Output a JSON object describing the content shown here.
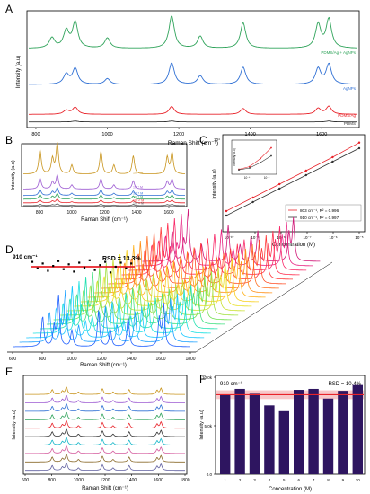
{
  "chart_data": [
    {
      "panel": "A",
      "type": "line",
      "xlabel": "Raman Shift (cm⁻¹)",
      "ylabel": "Intensity (a.u)",
      "xlim": [
        780,
        1700
      ],
      "x_ticks": [
        "800",
        "1000",
        "1200",
        "1400",
        "1600"
      ],
      "legend": "right",
      "series": [
        {
          "name": "PDMS/Ag + AgNPs",
          "color": "#2fa35a",
          "peaks": [
            [
              845,
              0.3
            ],
            [
              885,
              0.5
            ],
            [
              910,
              0.75
            ],
            [
              1000,
              0.3
            ],
            [
              1180,
              0.95
            ],
            [
              1260,
              0.35
            ],
            [
              1380,
              0.75
            ],
            [
              1590,
              0.7
            ],
            [
              1620,
              0.85
            ]
          ]
        },
        {
          "name": "AgNPs",
          "color": "#2e6fd4",
          "peaks": [
            [
              885,
              0.35
            ],
            [
              910,
              0.55
            ],
            [
              1000,
              0.2
            ],
            [
              1180,
              0.75
            ],
            [
              1260,
              0.3
            ],
            [
              1380,
              0.6
            ],
            [
              1590,
              0.55
            ],
            [
              1620,
              0.7
            ]
          ]
        },
        {
          "name": "PDMS/Ag",
          "color": "#e8232a",
          "peaks": [
            [
              885,
              0.2
            ],
            [
              910,
              0.35
            ],
            [
              1180,
              0.4
            ],
            [
              1380,
              0.3
            ],
            [
              1590,
              0.3
            ],
            [
              1620,
              0.4
            ]
          ]
        },
        {
          "name": "PDMS",
          "color": "#333333",
          "peaks": [
            [
              910,
              0.1
            ],
            [
              1180,
              0.1
            ],
            [
              1620,
              0.1
            ]
          ]
        }
      ]
    },
    {
      "panel": "B",
      "type": "line",
      "xlabel": "Raman Shift (cm⁻¹)",
      "ylabel": "Intensity (a.u)",
      "xlim": [
        700,
        1700
      ],
      "x_ticks": [
        "800",
        "1000",
        "1200",
        "1400",
        "1600"
      ],
      "series": [
        {
          "name": "10⁻⁶ M",
          "color": "#c8941c",
          "scale": 1.0
        },
        {
          "name": "10⁻⁷ M",
          "color": "#9d5bd2",
          "scale": 0.45
        },
        {
          "name": "10⁻⁸ M",
          "color": "#2e6fd4",
          "scale": 0.25
        },
        {
          "name": "10⁻⁹ M",
          "color": "#2fa35a",
          "scale": 0.18
        },
        {
          "name": "10⁻¹⁰ M",
          "color": "#e8232a",
          "scale": 0.12
        },
        {
          "name": "10⁻¹¹ M",
          "color": "#555555",
          "scale": 0.06
        }
      ],
      "peaks": [
        [
          803,
          0.8
        ],
        [
          880,
          0.5
        ],
        [
          910,
          1.0
        ],
        [
          1000,
          0.3
        ],
        [
          1180,
          0.75
        ],
        [
          1260,
          0.3
        ],
        [
          1380,
          0.6
        ],
        [
          1590,
          0.55
        ],
        [
          1620,
          0.7
        ]
      ]
    },
    {
      "panel": "C",
      "type": "scatter",
      "xlabel": "Concentration (M)",
      "ylabel": "Intensity (a.u)",
      "x_log": true,
      "y_log": true,
      "x_ticks": [
        "10⁻¹⁰",
        "10⁻⁹",
        "10⁻⁸",
        "10⁻⁷",
        "10⁻⁶",
        "10⁻⁵"
      ],
      "y_ticks": [
        "10⁴"
      ],
      "x": [
        -11,
        -10,
        -9,
        -8,
        -7,
        -6
      ],
      "series": [
        {
          "name": "803 cm⁻¹, R² = 0.996",
          "color": "#e8232a",
          "log_values": [
            0.8,
            1.4,
            2.0,
            2.6,
            3.2,
            3.85
          ]
        },
        {
          "name": "910 cm⁻¹, R² = 0.997",
          "color": "#333333",
          "log_values": [
            0.6,
            1.2,
            1.8,
            2.4,
            3.0,
            3.6
          ]
        }
      ],
      "legend": "bottom-right",
      "inset": {
        "ylabel": "Intensity (a.u)",
        "x_ticks": [
          "10⁻⁶",
          "10⁻⁵"
        ],
        "series": [
          {
            "color": "#e8232a",
            "values": [
              0.05,
              0.15,
              0.45,
              0.85
            ]
          },
          {
            "color": "#333333",
            "values": [
              0.03,
              0.1,
              0.3,
              0.55
            ]
          }
        ]
      }
    },
    {
      "panel": "D",
      "type": "line",
      "xlabel": "Raman Shift (cm⁻¹)",
      "x_ticks": [
        "600",
        "800",
        "1000",
        "1200",
        "1400",
        "1600",
        "1800"
      ],
      "spectra_count": 20,
      "colors": [
        "#1e5fff",
        "#1aa0ff",
        "#18c8ff",
        "#18e0e0",
        "#20e0b0",
        "#40e080",
        "#70e050",
        "#a0e040",
        "#c8e030",
        "#e8e028",
        "#f8d020",
        "#ffb018",
        "#ff9018",
        "#ff7020",
        "#ff5028",
        "#ff3838",
        "#ff3050",
        "#f82868",
        "#e82080",
        "#d01878"
      ],
      "peaks": [
        [
          803,
          0.55
        ],
        [
          880,
          0.35
        ],
        [
          910,
          0.9
        ],
        [
          1000,
          0.3
        ],
        [
          1180,
          0.65
        ],
        [
          1260,
          0.3
        ],
        [
          1380,
          0.55
        ],
        [
          1590,
          0.5
        ],
        [
          1620,
          0.75
        ]
      ],
      "inset": {
        "label": "910 cm⁻¹",
        "rsd": "RSD = 13.3%",
        "points": [
          0.6,
          -0.2,
          0.4,
          -0.5,
          0.1,
          0.7,
          -0.3,
          0.3,
          -0.6,
          0.5,
          -0.1,
          0.8,
          -0.4,
          0.2,
          0.6,
          -0.7,
          0.0,
          0.5,
          -0.2,
          0.4
        ],
        "mean_line_color": "#e8232a"
      }
    },
    {
      "panel": "E",
      "type": "line",
      "xlabel": "Raman Shift (cm⁻¹)",
      "ylabel": "Intensity (a.u)",
      "xlim": [
        600,
        1800
      ],
      "x_ticks": [
        "600",
        "800",
        "1000",
        "1200",
        "1400",
        "1600",
        "1800"
      ],
      "spectra_count": 10,
      "colors": [
        "#c8941c",
        "#9d5bd2",
        "#2e6fd4",
        "#2fa35a",
        "#e8232a",
        "#333333",
        "#12b5c8",
        "#d45a9d",
        "#8a6a2a",
        "#6060a0"
      ],
      "peaks": [
        [
          803,
          0.6
        ],
        [
          880,
          0.4
        ],
        [
          910,
          0.9
        ],
        [
          1000,
          0.3
        ],
        [
          1180,
          0.7
        ],
        [
          1260,
          0.3
        ],
        [
          1380,
          0.6
        ],
        [
          1590,
          0.5
        ],
        [
          1620,
          0.75
        ]
      ]
    },
    {
      "panel": "F",
      "type": "bar",
      "xlabel": "Concentration (M)",
      "ylabel": "Intensity (a.u)",
      "label": "910 cm⁻¹",
      "rsd": "RSD = 10.4%",
      "categories": [
        "1",
        "2",
        "3",
        "4",
        "5",
        "6",
        "7",
        "8",
        "9",
        "10"
      ],
      "values": [
        8.2,
        8.8,
        8.3,
        7.1,
        6.5,
        8.7,
        8.8,
        7.8,
        8.6,
        9.2
      ],
      "ylim": [
        0,
        10
      ],
      "y_ticks": [
        "0.0",
        "5.0k",
        "10.0k"
      ],
      "mean": 8.2,
      "bar_color": "#2e1560",
      "mean_color": "#e8232a"
    }
  ],
  "panel_labels": [
    "A",
    "B",
    "C",
    "D",
    "E",
    "F"
  ]
}
